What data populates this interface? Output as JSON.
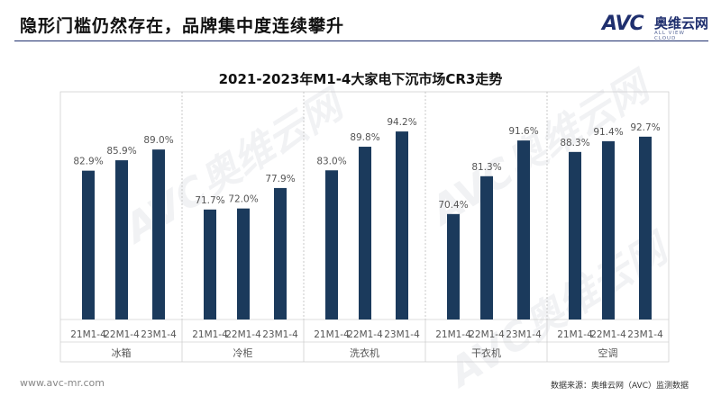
{
  "header": {
    "title": "隐形门槛仍然存在，品牌集中度连续攀升"
  },
  "logo": {
    "mark": "AVC",
    "name_cn": "奥维云网",
    "name_en": "ALL VIEW CLOUD"
  },
  "footer": {
    "url": "www.avc-mr.com",
    "source": "数据来源：奥维云网（AVC）监测数据"
  },
  "watermark": {
    "text": "AVC奥维云网"
  },
  "colors": {
    "bar": "#1b3a5c",
    "grid": "#d0d0d0",
    "tick": "#555555",
    "value": "#555555"
  },
  "chart_data": {
    "type": "bar",
    "title": "2021-2023年M1-4大家电下沉市场CR3走势",
    "unit": "%",
    "ylim": [
      0,
      100
    ],
    "groups": [
      {
        "name": "冰箱",
        "categories": [
          "21M1-4",
          "22M1-4",
          "23M1-4"
        ],
        "values": [
          82.9,
          85.9,
          89.0
        ],
        "labels": [
          "82.9%",
          "85.9%",
          "89.0%"
        ]
      },
      {
        "name": "冷柜",
        "categories": [
          "21M1-4",
          "22M1-4",
          "23M1-4"
        ],
        "values": [
          71.7,
          72.0,
          77.9
        ],
        "labels": [
          "71.7%",
          "72.0%",
          "77.9%"
        ]
      },
      {
        "name": "洗衣机",
        "categories": [
          "21M1-4",
          "22M1-4",
          "23M1-4"
        ],
        "values": [
          83.0,
          89.8,
          94.2
        ],
        "labels": [
          "83.0%",
          "89.8%",
          "94.2%"
        ]
      },
      {
        "name": "干衣机",
        "categories": [
          "21M1-4",
          "22M1-4",
          "23M1-4"
        ],
        "values": [
          70.4,
          81.3,
          91.6
        ],
        "labels": [
          "70.4%",
          "81.3%",
          "91.6%"
        ]
      },
      {
        "name": "空调",
        "categories": [
          "21M1-4",
          "22M1-4",
          "23M1-4"
        ],
        "values": [
          88.3,
          91.4,
          92.7
        ],
        "labels": [
          "88.3%",
          "91.4%",
          "92.7%"
        ]
      }
    ]
  }
}
